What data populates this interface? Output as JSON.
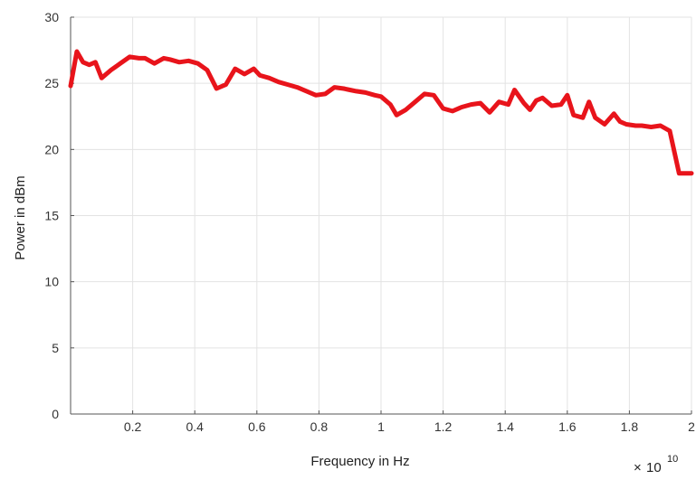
{
  "chart_data": {
    "type": "line",
    "xlabel": "Frequency in Hz",
    "ylabel": "Power in dBm",
    "x_exponent_prefix": "×",
    "x_exponent_base": "10",
    "x_exponent": "10",
    "xlim": [
      0,
      2
    ],
    "ylim": [
      0,
      30
    ],
    "x_ticks": [
      0.2,
      0.4,
      0.6,
      0.8,
      1,
      1.2,
      1.4,
      1.6,
      1.8,
      2
    ],
    "x_tick_labels": [
      "0.2",
      "0.4",
      "0.6",
      "0.8",
      "1",
      "1.2",
      "1.4",
      "1.6",
      "1.8",
      "2"
    ],
    "y_ticks": [
      0,
      5,
      10,
      15,
      20,
      25,
      30
    ],
    "y_tick_labels": [
      "0",
      "5",
      "10",
      "15",
      "20",
      "25",
      "30"
    ],
    "grid": true,
    "series": [
      {
        "color": "#e8141b",
        "x": [
          0.0,
          0.02,
          0.04,
          0.06,
          0.08,
          0.1,
          0.13,
          0.16,
          0.19,
          0.22,
          0.24,
          0.27,
          0.3,
          0.32,
          0.35,
          0.38,
          0.41,
          0.44,
          0.47,
          0.5,
          0.53,
          0.56,
          0.59,
          0.61,
          0.64,
          0.67,
          0.7,
          0.73,
          0.76,
          0.79,
          0.82,
          0.85,
          0.88,
          0.9,
          0.92,
          0.95,
          0.98,
          1.0,
          1.03,
          1.05,
          1.08,
          1.11,
          1.14,
          1.17,
          1.2,
          1.23,
          1.26,
          1.29,
          1.32,
          1.35,
          1.38,
          1.41,
          1.43,
          1.46,
          1.48,
          1.5,
          1.52,
          1.55,
          1.58,
          1.6,
          1.62,
          1.65,
          1.67,
          1.69,
          1.72,
          1.75,
          1.77,
          1.79,
          1.82,
          1.84,
          1.87,
          1.9,
          1.93,
          1.96,
          1.98,
          2.0
        ],
        "y": [
          24.8,
          27.4,
          26.6,
          26.4,
          26.6,
          25.4,
          26.0,
          26.5,
          27.0,
          26.9,
          26.9,
          26.5,
          26.9,
          26.8,
          26.6,
          26.7,
          26.5,
          26.0,
          24.6,
          24.9,
          26.1,
          25.7,
          26.1,
          25.6,
          25.4,
          25.1,
          24.9,
          24.7,
          24.4,
          24.1,
          24.2,
          24.7,
          24.6,
          24.5,
          24.4,
          24.3,
          24.1,
          24.0,
          23.4,
          22.6,
          23.0,
          23.6,
          24.2,
          24.1,
          23.1,
          22.9,
          23.2,
          23.4,
          23.5,
          22.8,
          23.6,
          23.4,
          24.5,
          23.5,
          23.0,
          23.7,
          23.9,
          23.3,
          23.4,
          24.1,
          22.6,
          22.4,
          23.6,
          22.4,
          21.9,
          22.7,
          22.1,
          21.9,
          21.8,
          21.8,
          21.7,
          21.8,
          21.4,
          18.2,
          18.2,
          18.2
        ]
      }
    ]
  }
}
